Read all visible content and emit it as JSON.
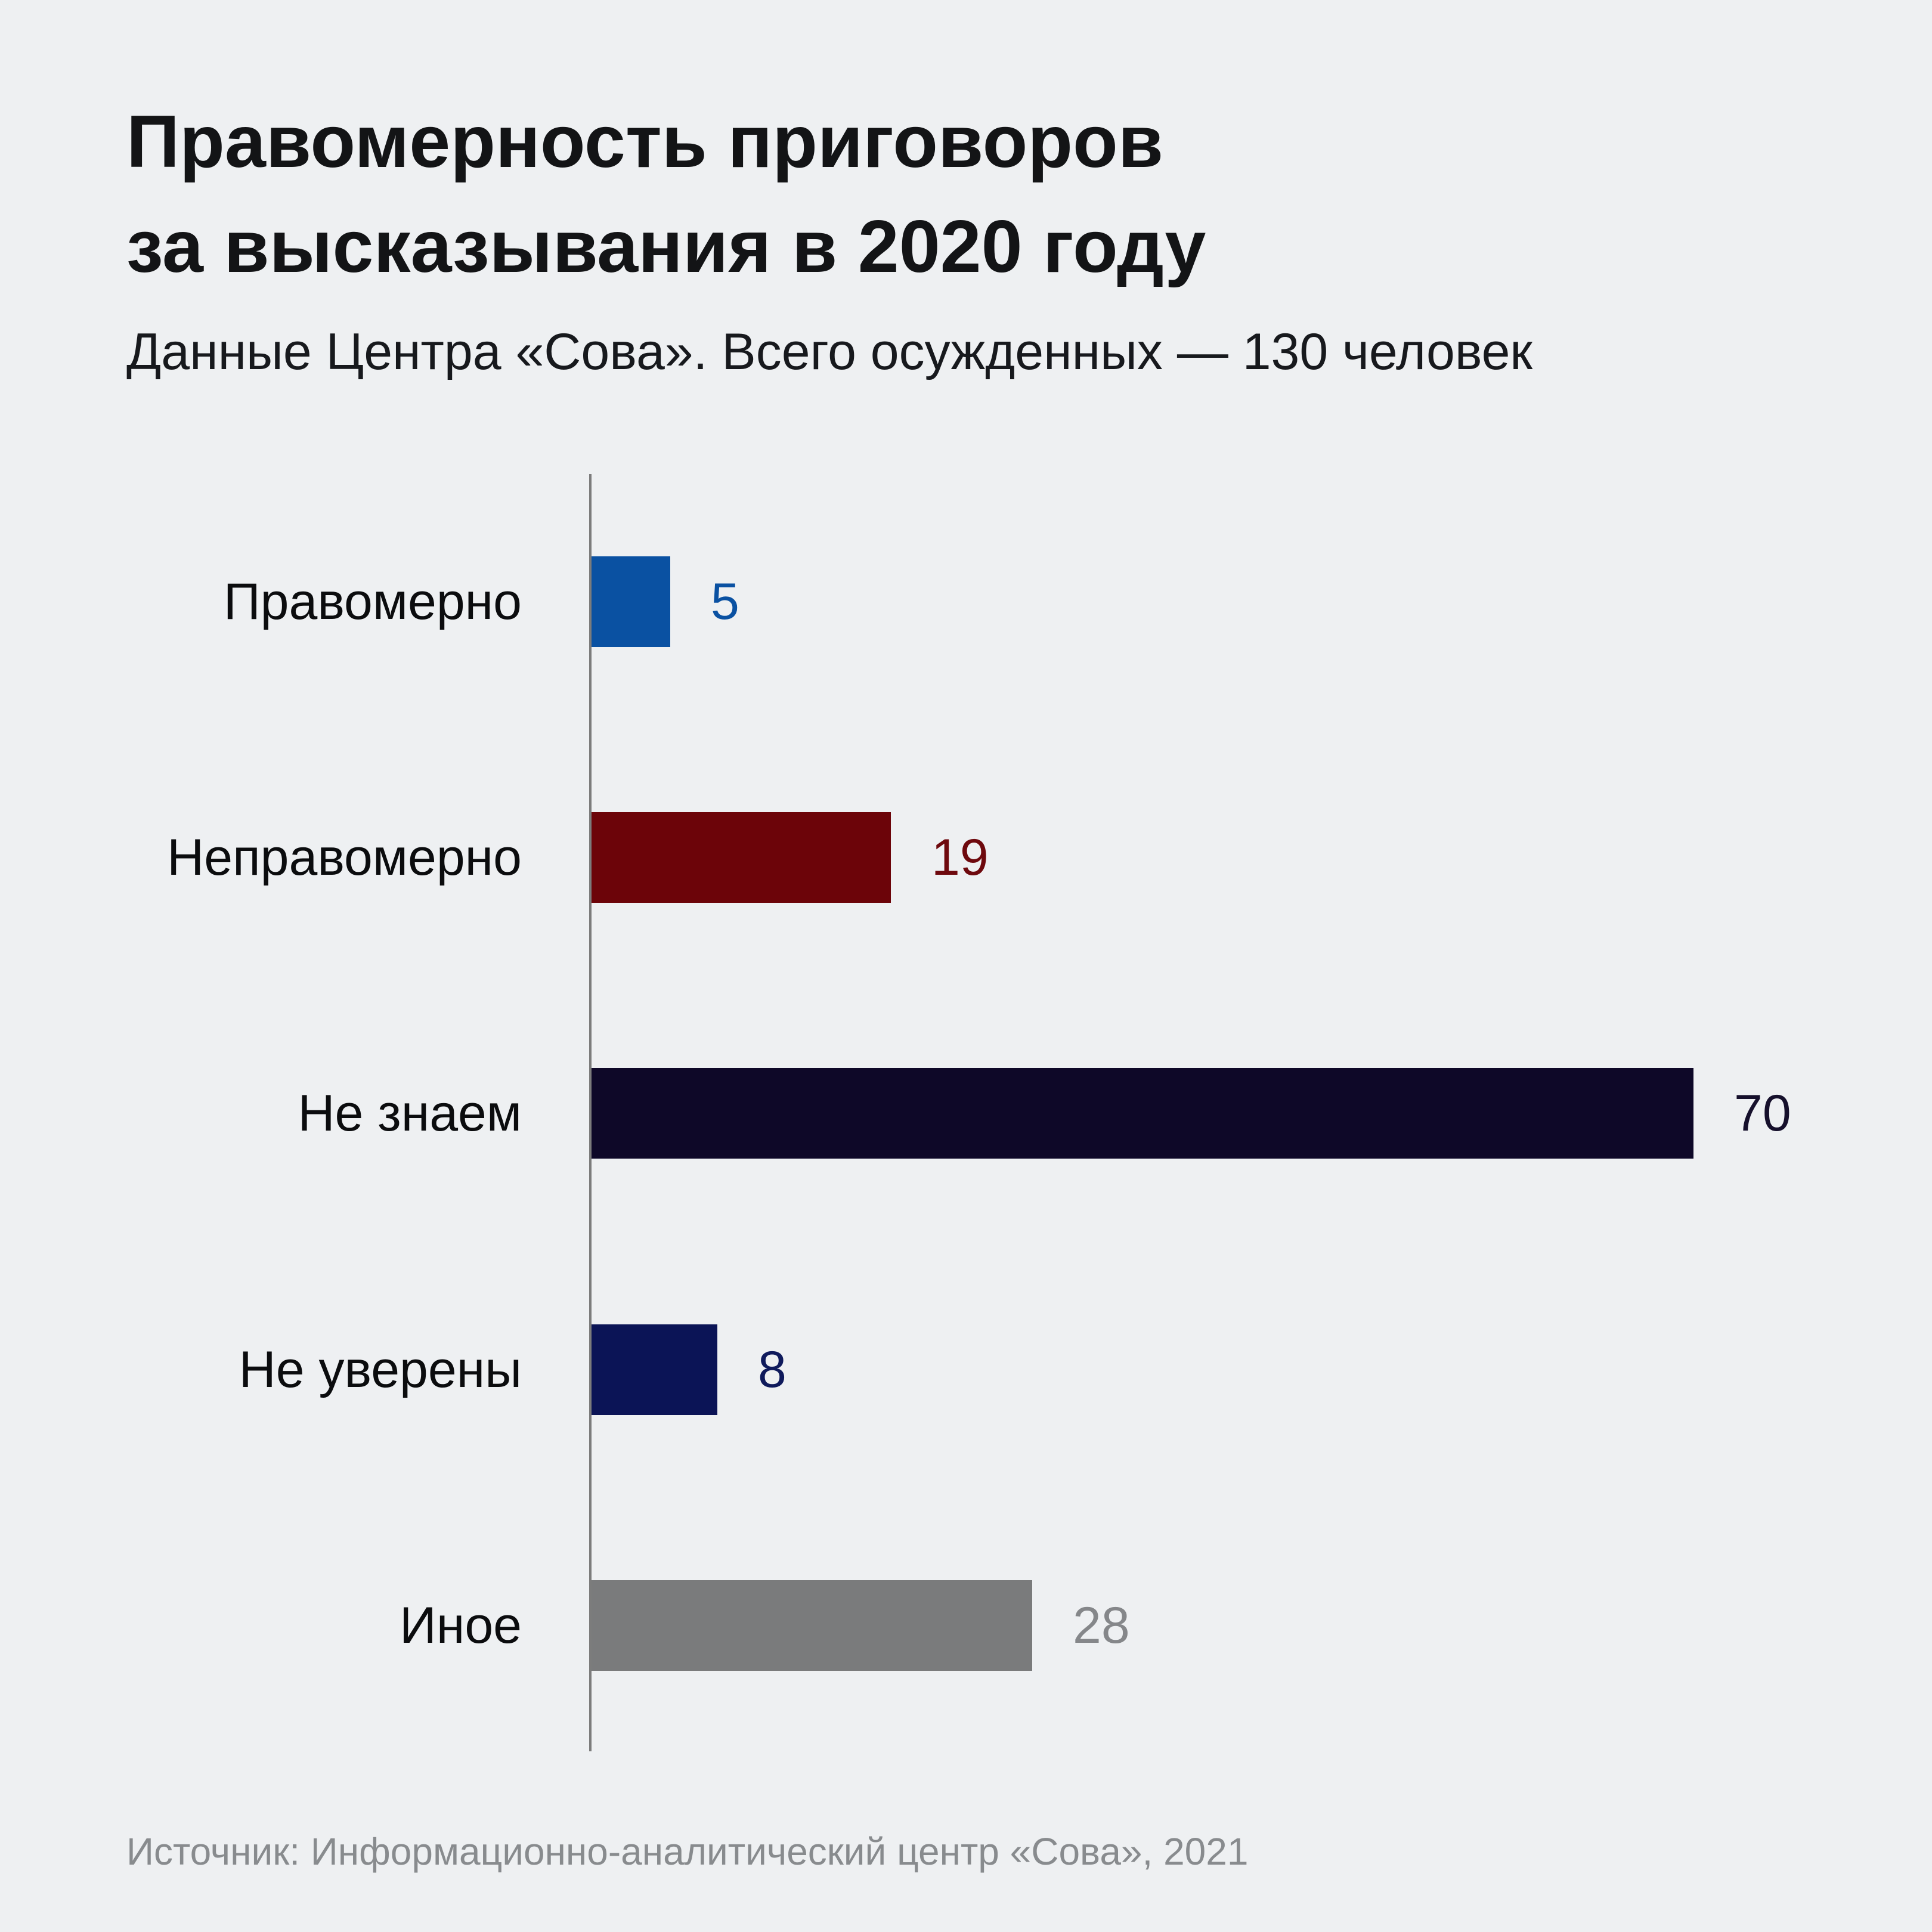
{
  "header": {
    "title_line1": "Правомерность приговоров",
    "title_line2": "за высказывания в 2020 году",
    "subtitle": "Данные Центра «Сова». Всего осужденных — 130 человек"
  },
  "footer": {
    "source": "Источник: Информационно-аналитический центр «Сова», 2021"
  },
  "chart_data": {
    "type": "bar",
    "orientation": "horizontal",
    "title": "Правомерность приговоров за высказывания в 2020 году",
    "subtitle": "Данные Центра «Сова». Всего осужденных — 130 человек",
    "source": "Источник: Информационно-аналитический центр «Сова», 2021",
    "total_convicted": 130,
    "categories": [
      "Правомерно",
      "Неправомерно",
      "Не знаем",
      "Не уверены",
      "Иное"
    ],
    "values": [
      5,
      19,
      70,
      8,
      28
    ],
    "bar_colors": [
      "#0a51a2",
      "#6c0409",
      "#0e0828",
      "#0b1456",
      "#7a7b7c"
    ],
    "value_label_colors": [
      "#0a51a2",
      "#6e090e",
      "#16102c",
      "#0f1a5c",
      "#85878a"
    ],
    "xlim": [
      0,
      70
    ],
    "grid": false,
    "legend": false,
    "value_labels_position": "right-of-bar",
    "background_color": "#eef0f2",
    "axis_color": "#7c7c7c"
  }
}
